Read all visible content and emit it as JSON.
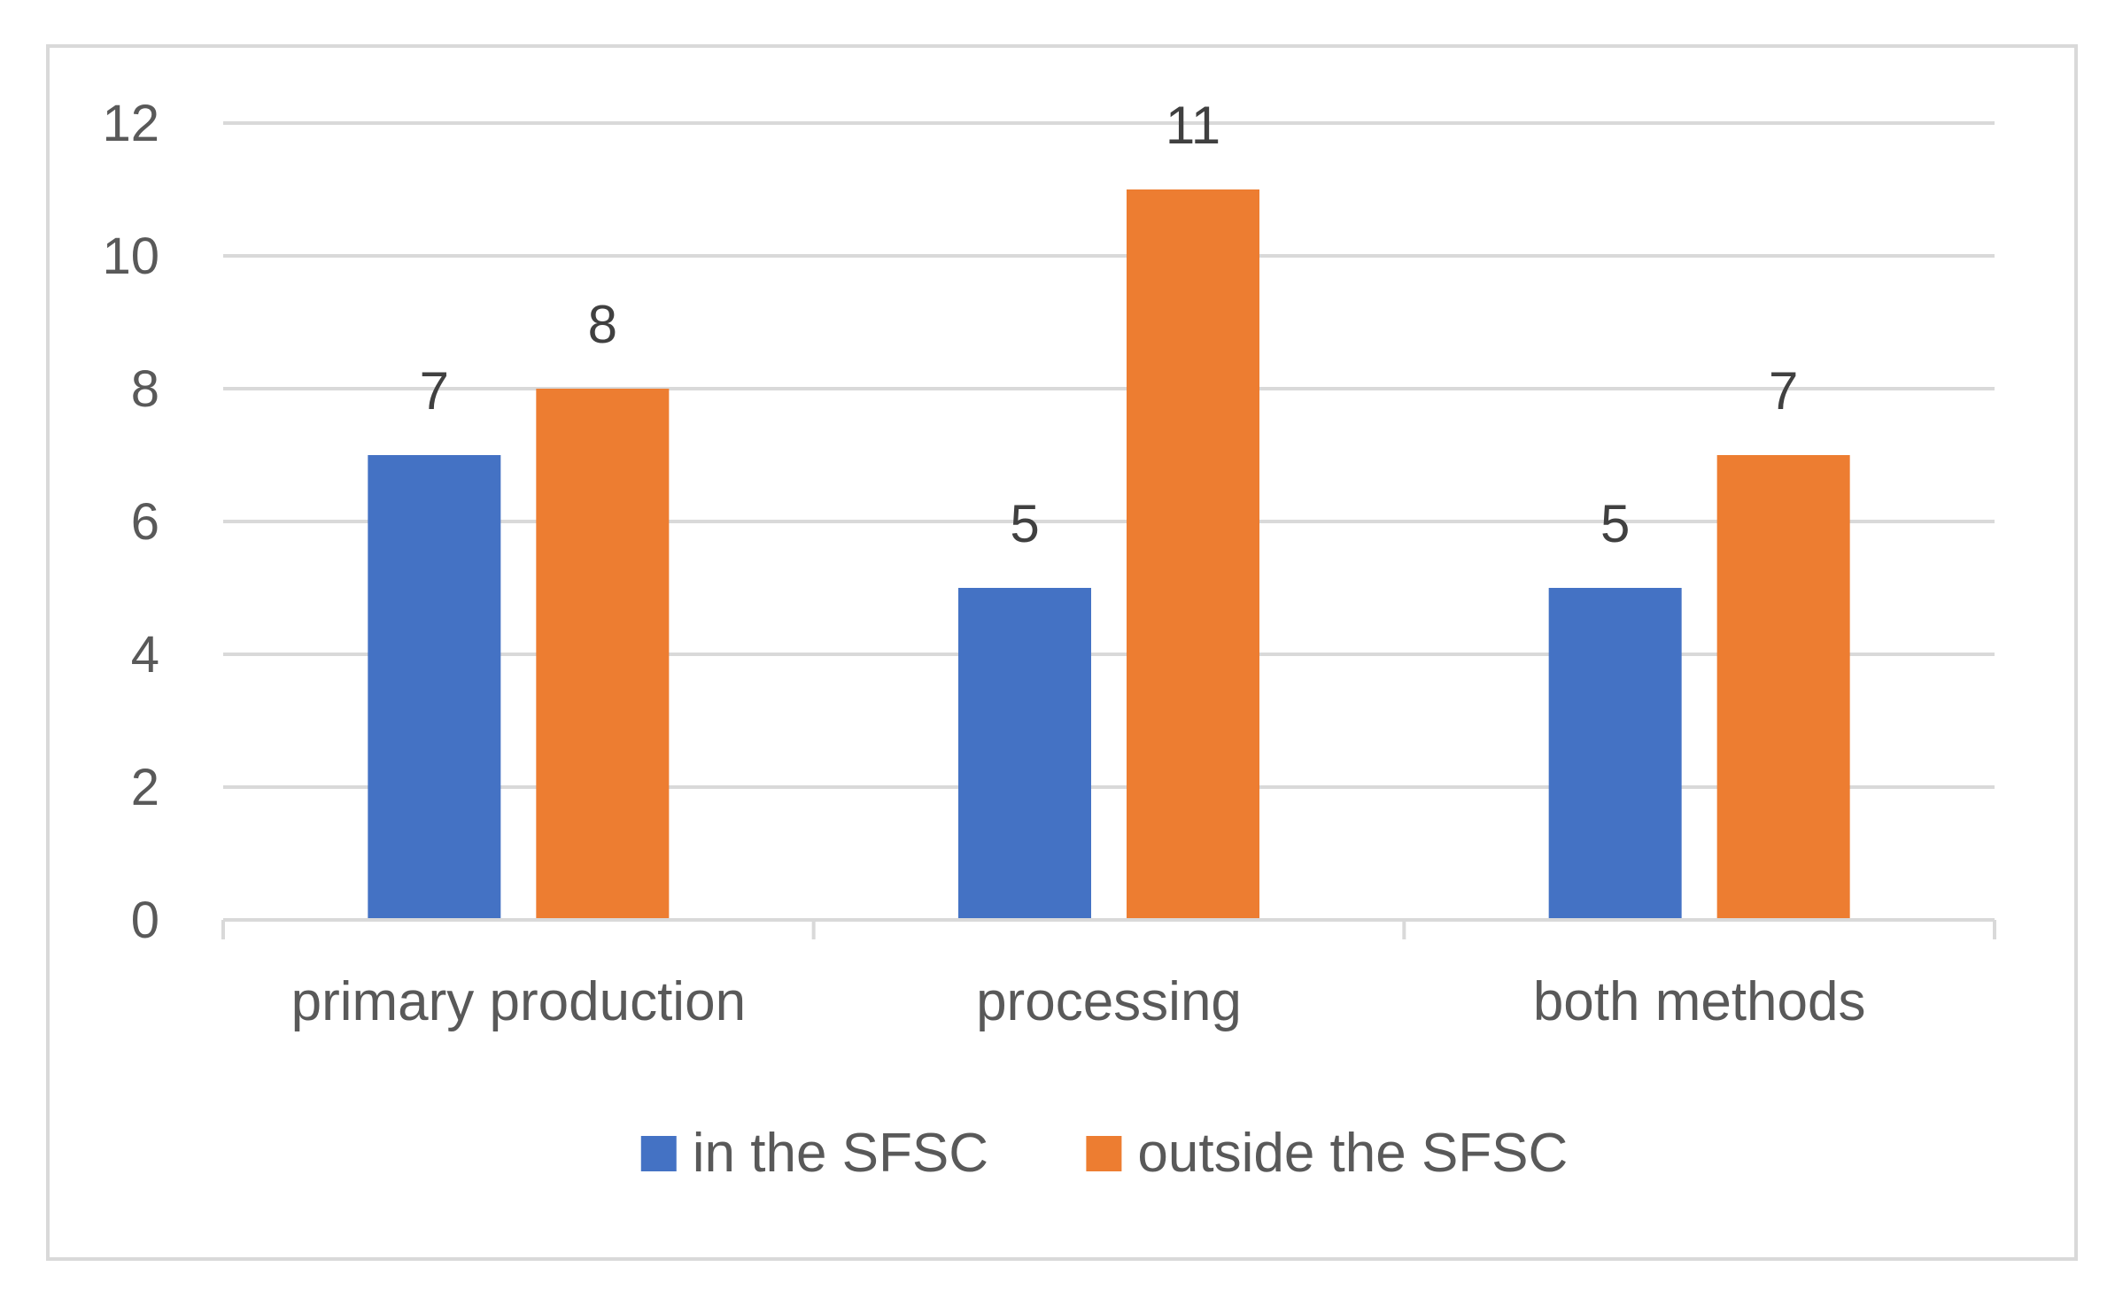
{
  "chart_data": {
    "type": "bar",
    "title": "",
    "xlabel": "",
    "ylabel": "",
    "categories": [
      "primary production",
      "processing",
      "both methods"
    ],
    "series": [
      {
        "name": "in the SFSC",
        "color": "#4472c4",
        "values": [
          7,
          5,
          5
        ]
      },
      {
        "name": "outside the SFSC",
        "color": "#ed7d31",
        "values": [
          8,
          11,
          7
        ]
      }
    ],
    "ylim": [
      0,
      12
    ],
    "yticks": [
      "0",
      "2",
      "4",
      "6",
      "8",
      "10",
      "12"
    ],
    "ytick_values": [
      0,
      2,
      4,
      6,
      8,
      10,
      12
    ],
    "grid": true,
    "data_labels": true,
    "legend_position": "bottom",
    "gridline_color": "#d9d9d9",
    "axis_color": "#d9d9d9"
  }
}
